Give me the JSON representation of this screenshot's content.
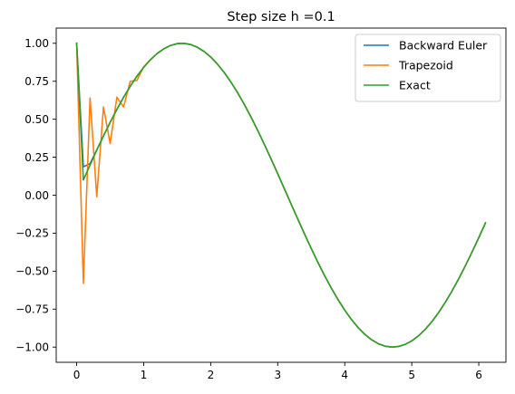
{
  "chart_data": {
    "type": "line",
    "title": "Step size h =0.1",
    "xlabel": "",
    "ylabel": "",
    "xlim": [
      -0.305,
      6.405
    ],
    "ylim": [
      -1.1,
      1.1
    ],
    "xticks": [
      0,
      1,
      2,
      3,
      4,
      5,
      6
    ],
    "yticks": [
      -1.0,
      -0.75,
      -0.5,
      -0.25,
      0.0,
      0.25,
      0.5,
      0.75,
      1.0
    ],
    "xtick_labels": [
      "0",
      "1",
      "2",
      "3",
      "4",
      "5",
      "6"
    ],
    "ytick_labels": [
      "−1.00",
      "−0.75",
      "−0.50",
      "−0.25",
      "0.00",
      "0.25",
      "0.50",
      "0.75",
      "1.00"
    ],
    "grid": false,
    "legend_position": "top-right",
    "series": [
      {
        "name": "Backward Euler",
        "color": "#1f77b4",
        "x": [
          0.0,
          0.1,
          0.2,
          0.3,
          0.4,
          0.5,
          0.6,
          0.7,
          0.8,
          0.9,
          1.0,
          1.1,
          1.2,
          1.3,
          1.4,
          1.5,
          1.6,
          1.7,
          1.8,
          1.9,
          2.0,
          2.1,
          2.2,
          2.3,
          2.4,
          2.5,
          2.6,
          2.7,
          2.8,
          2.9,
          3.0,
          3.1,
          3.2,
          3.3,
          3.4,
          3.5,
          3.6,
          3.7,
          3.8,
          3.9,
          4.0,
          4.1,
          4.2,
          4.3,
          4.4,
          4.5,
          4.6,
          4.7,
          4.8,
          4.9,
          5.0,
          5.1,
          5.2,
          5.3,
          5.4,
          5.5,
          5.6,
          5.7,
          5.8,
          5.9,
          6.0,
          6.1
        ],
        "y": [
          1.0,
          0.1868,
          0.2078,
          0.2986,
          0.3903,
          0.4797,
          0.5648,
          0.6444,
          0.7174,
          0.7833,
          0.8415,
          0.8912,
          0.932,
          0.9636,
          0.9854,
          0.9975,
          0.9996,
          0.9917,
          0.9738,
          0.9463,
          0.9093,
          0.8632,
          0.8085,
          0.7457,
          0.6755,
          0.5985,
          0.5155,
          0.4274,
          0.335,
          0.2392,
          0.1411,
          0.0416,
          -0.0584,
          -0.1577,
          -0.2555,
          -0.3508,
          -0.4425,
          -0.5298,
          -0.6119,
          -0.6878,
          -0.7568,
          -0.8183,
          -0.8716,
          -0.9162,
          -0.9516,
          -0.9775,
          -0.9937,
          -0.9999,
          -0.9962,
          -0.9825,
          -0.9589,
          -0.9258,
          -0.8835,
          -0.8323,
          -0.7728,
          -0.7055,
          -0.6313,
          -0.5507,
          -0.4646,
          -0.3739,
          -0.2794,
          -0.1822
        ]
      },
      {
        "name": "Trapezoid",
        "color": "#ff7f0e",
        "x": [
          0.0,
          0.1,
          0.2,
          0.3,
          0.4,
          0.5,
          0.6,
          0.7,
          0.8,
          0.9,
          1.0,
          1.1,
          1.2,
          1.3,
          1.4,
          1.5,
          1.6,
          1.7,
          1.8,
          1.9,
          2.0,
          2.1,
          2.2,
          2.3,
          2.4,
          2.5,
          2.6,
          2.7,
          2.8,
          2.9,
          3.0,
          3.1,
          3.2,
          3.3,
          3.4,
          3.5,
          3.6,
          3.7,
          3.8,
          3.9,
          4.0,
          4.1,
          4.2,
          4.3,
          4.4,
          4.5,
          4.6,
          4.7,
          4.8,
          4.9,
          5.0,
          5.1,
          5.2,
          5.3,
          5.4,
          5.5,
          5.6,
          5.7,
          5.8,
          5.9,
          6.0,
          6.1
        ],
        "y": [
          1.0,
          -0.58,
          0.64,
          -0.01,
          0.58,
          0.34,
          0.645,
          0.58,
          0.75,
          0.755,
          0.845,
          0.8912,
          0.932,
          0.9636,
          0.9854,
          0.9975,
          0.9996,
          0.9917,
          0.9738,
          0.9463,
          0.9093,
          0.8632,
          0.8085,
          0.7457,
          0.6755,
          0.5985,
          0.5155,
          0.4274,
          0.335,
          0.2392,
          0.1411,
          0.0416,
          -0.0584,
          -0.1577,
          -0.2555,
          -0.3508,
          -0.4425,
          -0.5298,
          -0.6119,
          -0.6878,
          -0.7568,
          -0.8183,
          -0.8716,
          -0.9162,
          -0.9516,
          -0.9775,
          -0.9937,
          -0.9999,
          -0.9962,
          -0.9825,
          -0.9589,
          -0.9258,
          -0.8835,
          -0.8323,
          -0.7728,
          -0.7055,
          -0.6313,
          -0.5507,
          -0.4646,
          -0.3739,
          -0.2794,
          -0.1822
        ]
      },
      {
        "name": "Exact",
        "color": "#2ca02c",
        "x": [
          0.0,
          0.1,
          0.2,
          0.3,
          0.4,
          0.5,
          0.6,
          0.7,
          0.8,
          0.9,
          1.0,
          1.1,
          1.2,
          1.3,
          1.4,
          1.5,
          1.6,
          1.7,
          1.8,
          1.9,
          2.0,
          2.1,
          2.2,
          2.3,
          2.4,
          2.5,
          2.6,
          2.7,
          2.8,
          2.9,
          3.0,
          3.1,
          3.2,
          3.3,
          3.4,
          3.5,
          3.6,
          3.7,
          3.8,
          3.9,
          4.0,
          4.1,
          4.2,
          4.3,
          4.4,
          4.5,
          4.6,
          4.7,
          4.8,
          4.9,
          5.0,
          5.1,
          5.2,
          5.3,
          5.4,
          5.5,
          5.6,
          5.7,
          5.8,
          5.9,
          6.0,
          6.1
        ],
        "y": [
          1.0,
          0.0998,
          0.1987,
          0.2955,
          0.3894,
          0.4794,
          0.5646,
          0.6442,
          0.7174,
          0.7833,
          0.8415,
          0.8912,
          0.932,
          0.9636,
          0.9854,
          0.9975,
          0.9996,
          0.9917,
          0.9738,
          0.9463,
          0.9093,
          0.8632,
          0.8085,
          0.7457,
          0.6755,
          0.5985,
          0.5155,
          0.4274,
          0.335,
          0.2392,
          0.1411,
          0.0416,
          -0.0584,
          -0.1577,
          -0.2555,
          -0.3508,
          -0.4425,
          -0.5298,
          -0.6119,
          -0.6878,
          -0.7568,
          -0.8183,
          -0.8716,
          -0.9162,
          -0.9516,
          -0.9775,
          -0.9937,
          -0.9999,
          -0.9962,
          -0.9825,
          -0.9589,
          -0.9258,
          -0.8835,
          -0.8323,
          -0.7728,
          -0.7055,
          -0.6313,
          -0.5507,
          -0.4646,
          -0.3739,
          -0.2794,
          -0.1822
        ]
      }
    ]
  }
}
